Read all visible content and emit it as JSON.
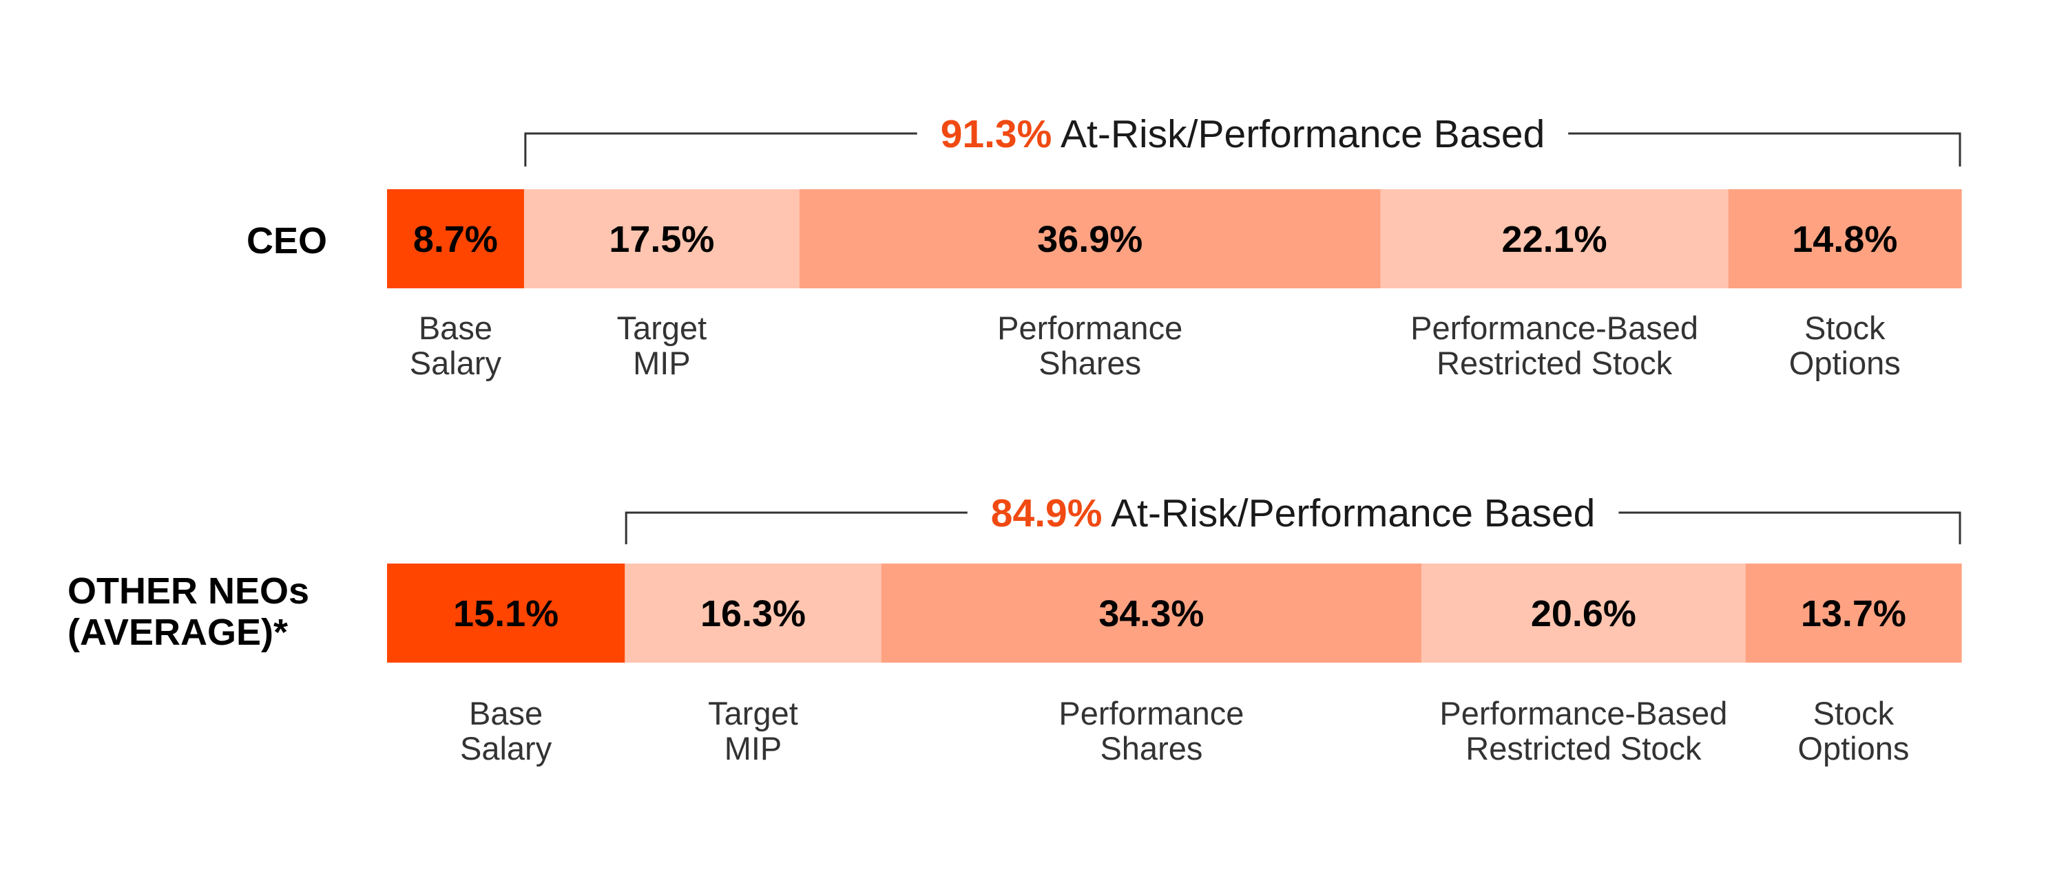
{
  "chart_data": {
    "type": "bar",
    "orientation": "horizontal",
    "stacked": true,
    "normalized": true,
    "colors": [
      "#ff4500",
      "#ffc5b0",
      "#ffa282",
      "#ffc5b0",
      "#ffa282"
    ],
    "highlight_color": "#f04a12",
    "rows": [
      {
        "label": "CEO",
        "bracket": {
          "percent": "91.3%",
          "text": "At-Risk/Performance Based"
        },
        "segments": [
          {
            "value": 8.7,
            "display": "8.7%",
            "category": [
              "Base",
              "Salary"
            ]
          },
          {
            "value": 17.5,
            "display": "17.5%",
            "category": [
              "Target",
              "MIP"
            ]
          },
          {
            "value": 36.9,
            "display": "36.9%",
            "category": [
              "Performance",
              "Shares"
            ]
          },
          {
            "value": 22.1,
            "display": "22.1%",
            "category": [
              "Performance-Based",
              "Restricted Stock"
            ]
          },
          {
            "value": 14.8,
            "display": "14.8%",
            "category": [
              "Stock",
              "Options"
            ]
          }
        ]
      },
      {
        "label": [
          "OTHER NEOs",
          "(AVERAGE)*"
        ],
        "bracket": {
          "percent": "84.9%",
          "text": "At-Risk/Performance Based"
        },
        "segments": [
          {
            "value": 15.1,
            "display": "15.1%",
            "category": [
              "Base",
              "Salary"
            ]
          },
          {
            "value": 16.3,
            "display": "16.3%",
            "category": [
              "Target",
              "MIP"
            ]
          },
          {
            "value": 34.3,
            "display": "34.3%",
            "category": [
              "Performance",
              "Shares"
            ]
          },
          {
            "value": 20.6,
            "display": "20.6%",
            "category": [
              "Performance-Based",
              "Restricted Stock"
            ]
          },
          {
            "value": 13.7,
            "display": "13.7%",
            "category": [
              "Stock",
              "Options"
            ]
          }
        ]
      }
    ]
  }
}
